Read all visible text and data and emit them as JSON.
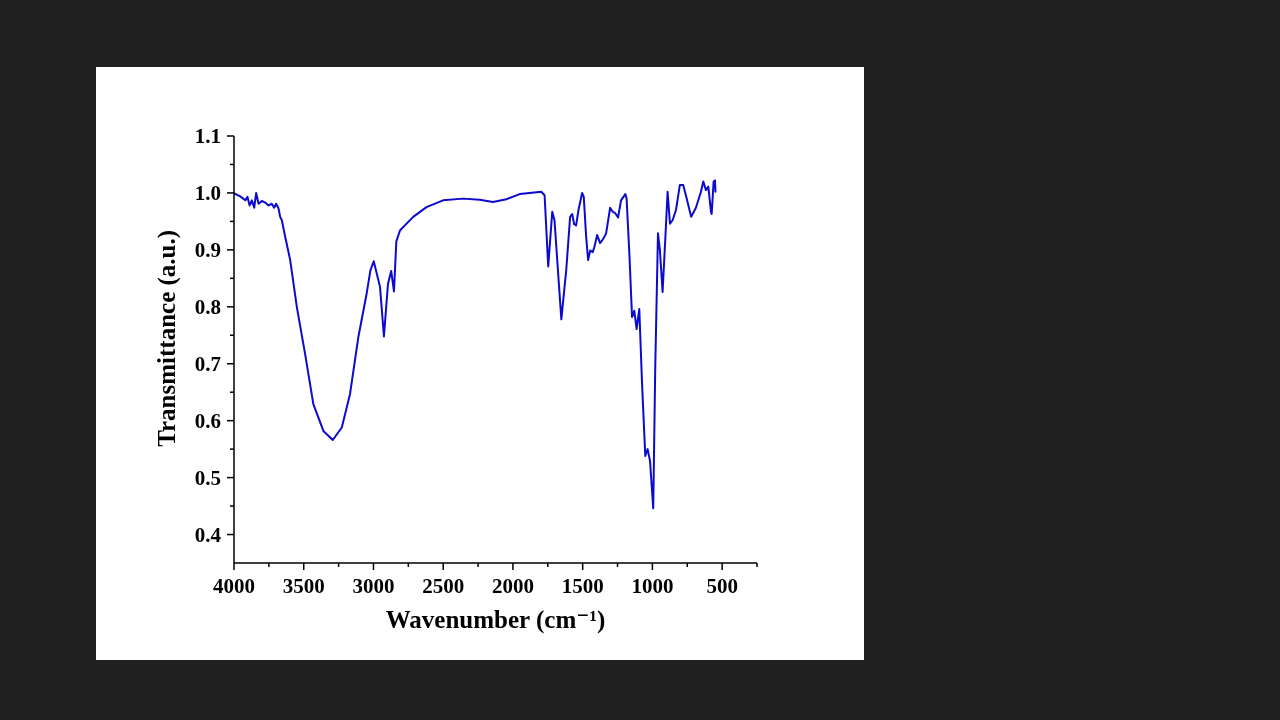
{
  "chart_data": {
    "type": "line",
    "xlabel": "Wavenumber (cm⁻¹)",
    "ylabel": "Transmittance (a.u.)",
    "xlim": [
      4000,
      250
    ],
    "xticks": [
      4000,
      {
        "value": 3750,
        "label": null
      },
      3500,
      {
        "value": 3250,
        "label": null
      },
      3000,
      {
        "value": 2750,
        "label": null
      },
      2500,
      {
        "value": 2250,
        "label": null
      },
      2000,
      {
        "value": 1750,
        "label": null
      },
      1500,
      {
        "value": 1250,
        "label": null
      },
      1000,
      {
        "value": 750,
        "label": null
      },
      500,
      {
        "value": 250,
        "label": null
      }
    ],
    "ylim": [
      0.35,
      1.1
    ],
    "yticks": [
      0.4,
      {
        "value": 0.45,
        "label": null
      },
      0.5,
      {
        "value": 0.55,
        "label": null
      },
      0.6,
      {
        "value": 0.65,
        "label": null
      },
      0.7,
      {
        "value": 0.75,
        "label": null
      },
      0.8,
      {
        "value": 0.85,
        "label": null
      },
      0.9,
      {
        "value": 0.95,
        "label": null
      },
      {
        "value": 1,
        "label": "1.0"
      },
      {
        "value": 1.05,
        "label": null
      },
      1.1
    ],
    "color": "#0b0bd0",
    "x": [
      3998,
      3955,
      3919,
      3903,
      3888,
      3872,
      3855,
      3841,
      3824,
      3800,
      3776,
      3752,
      3729,
      3712,
      3698,
      3681,
      3669,
      3657,
      3633,
      3597,
      3549,
      3490,
      3431,
      3359,
      3292,
      3227,
      3168,
      3109,
      3049,
      3022,
      2998,
      2953,
      2925,
      2896,
      2873,
      2853,
      2836,
      2810,
      2787,
      2715,
      2620,
      2501,
      2358,
      2238,
      2143,
      2047,
      1952,
      1881,
      1797,
      1773,
      1747,
      1718,
      1702,
      1653,
      1618,
      1590,
      1575,
      1561,
      1547,
      1530,
      1504,
      1492,
      1475,
      1461,
      1446,
      1428,
      1416,
      1396,
      1375,
      1351,
      1332,
      1303,
      1285,
      1265,
      1246,
      1225,
      1194,
      1185,
      1165,
      1146,
      1130,
      1113,
      1094,
      1074,
      1051,
      1034,
      1017,
      994,
      980,
      960,
      946,
      927,
      908,
      891,
      874,
      855,
      831,
      803,
      779,
      760,
      722,
      688,
      652,
      635,
      616,
      599,
      580,
      575,
      561,
      551,
      548
    ],
    "values": [
      0.999,
      0.994,
      0.987,
      0.993,
      0.978,
      0.987,
      0.974,
      1.0,
      0.981,
      0.986,
      0.983,
      0.978,
      0.981,
      0.974,
      0.981,
      0.973,
      0.958,
      0.952,
      0.923,
      0.882,
      0.799,
      0.717,
      0.629,
      0.582,
      0.566,
      0.588,
      0.647,
      0.746,
      0.823,
      0.864,
      0.88,
      0.835,
      0.748,
      0.84,
      0.863,
      0.827,
      0.915,
      0.934,
      0.94,
      0.958,
      0.975,
      0.987,
      0.99,
      0.988,
      0.984,
      0.989,
      0.998,
      1.0,
      1.002,
      0.996,
      0.871,
      0.967,
      0.952,
      0.778,
      0.864,
      0.958,
      0.963,
      0.945,
      0.943,
      0.97,
      1.0,
      0.993,
      0.923,
      0.882,
      0.899,
      0.896,
      0.905,
      0.926,
      0.912,
      0.92,
      0.929,
      0.974,
      0.967,
      0.964,
      0.957,
      0.987,
      0.998,
      0.99,
      0.893,
      0.782,
      0.793,
      0.761,
      0.796,
      0.664,
      0.538,
      0.55,
      0.529,
      0.446,
      0.688,
      0.929,
      0.899,
      0.826,
      0.917,
      1.002,
      0.946,
      0.952,
      0.97,
      1.014,
      1.014,
      0.996,
      0.958,
      0.974,
      1.002,
      1.02,
      1.005,
      1.011,
      0.967,
      0.963,
      1.02,
      1.022,
      1.002
    ]
  }
}
